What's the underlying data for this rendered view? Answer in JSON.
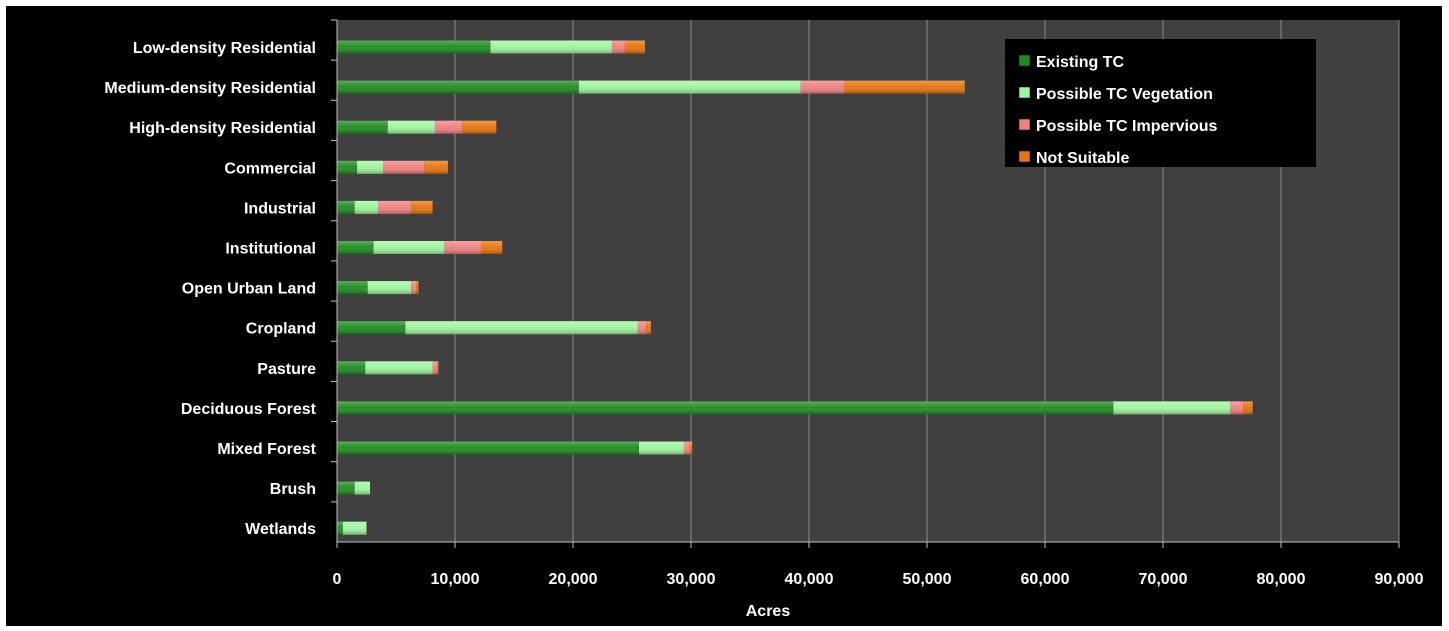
{
  "chart_data": {
    "type": "bar",
    "orientation": "horizontal",
    "stacked": true,
    "categories": [
      "Low-density Residential",
      "Medium-density Residential",
      "High-density Residential",
      "Commercial",
      "Industrial",
      "Institutional",
      "Open Urban Land",
      "Cropland",
      "Pasture",
      "Deciduous Forest",
      "Mixed Forest",
      "Brush",
      "Wetlands"
    ],
    "series": [
      {
        "name": "Existing TC",
        "color": "#1e8c1e",
        "values": [
          13000,
          20500,
          4300,
          1700,
          1500,
          3100,
          2600,
          5800,
          2400,
          65800,
          25600,
          1500,
          500
        ]
      },
      {
        "name": "Possible TC Vegetation",
        "color": "#9ef59e",
        "values": [
          10300,
          18800,
          4000,
          2200,
          2000,
          6000,
          3700,
          19700,
          5700,
          9900,
          3800,
          1300,
          2000
        ]
      },
      {
        "name": "Possible TC Impervious",
        "color": "#f08080",
        "values": [
          1100,
          3700,
          2300,
          3500,
          2800,
          3100,
          400,
          700,
          400,
          1100,
          500,
          0,
          0
        ]
      },
      {
        "name": "Not Suitable",
        "color": "#e8740c",
        "values": [
          1700,
          10200,
          2900,
          2000,
          1800,
          1800,
          200,
          400,
          100,
          800,
          200,
          0,
          0
        ]
      }
    ],
    "x_ticks": [
      "0",
      "10,000",
      "20,000",
      "30,000",
      "40,000",
      "50,000",
      "60,000",
      "70,000",
      "80,000",
      "90,000"
    ],
    "xlim": [
      0,
      90000
    ],
    "xlabel": "Acres",
    "ylabel": "",
    "title": "",
    "grid": "vertical",
    "legend_position": "top-right",
    "background": "#000000",
    "plot_background": "#404040"
  }
}
